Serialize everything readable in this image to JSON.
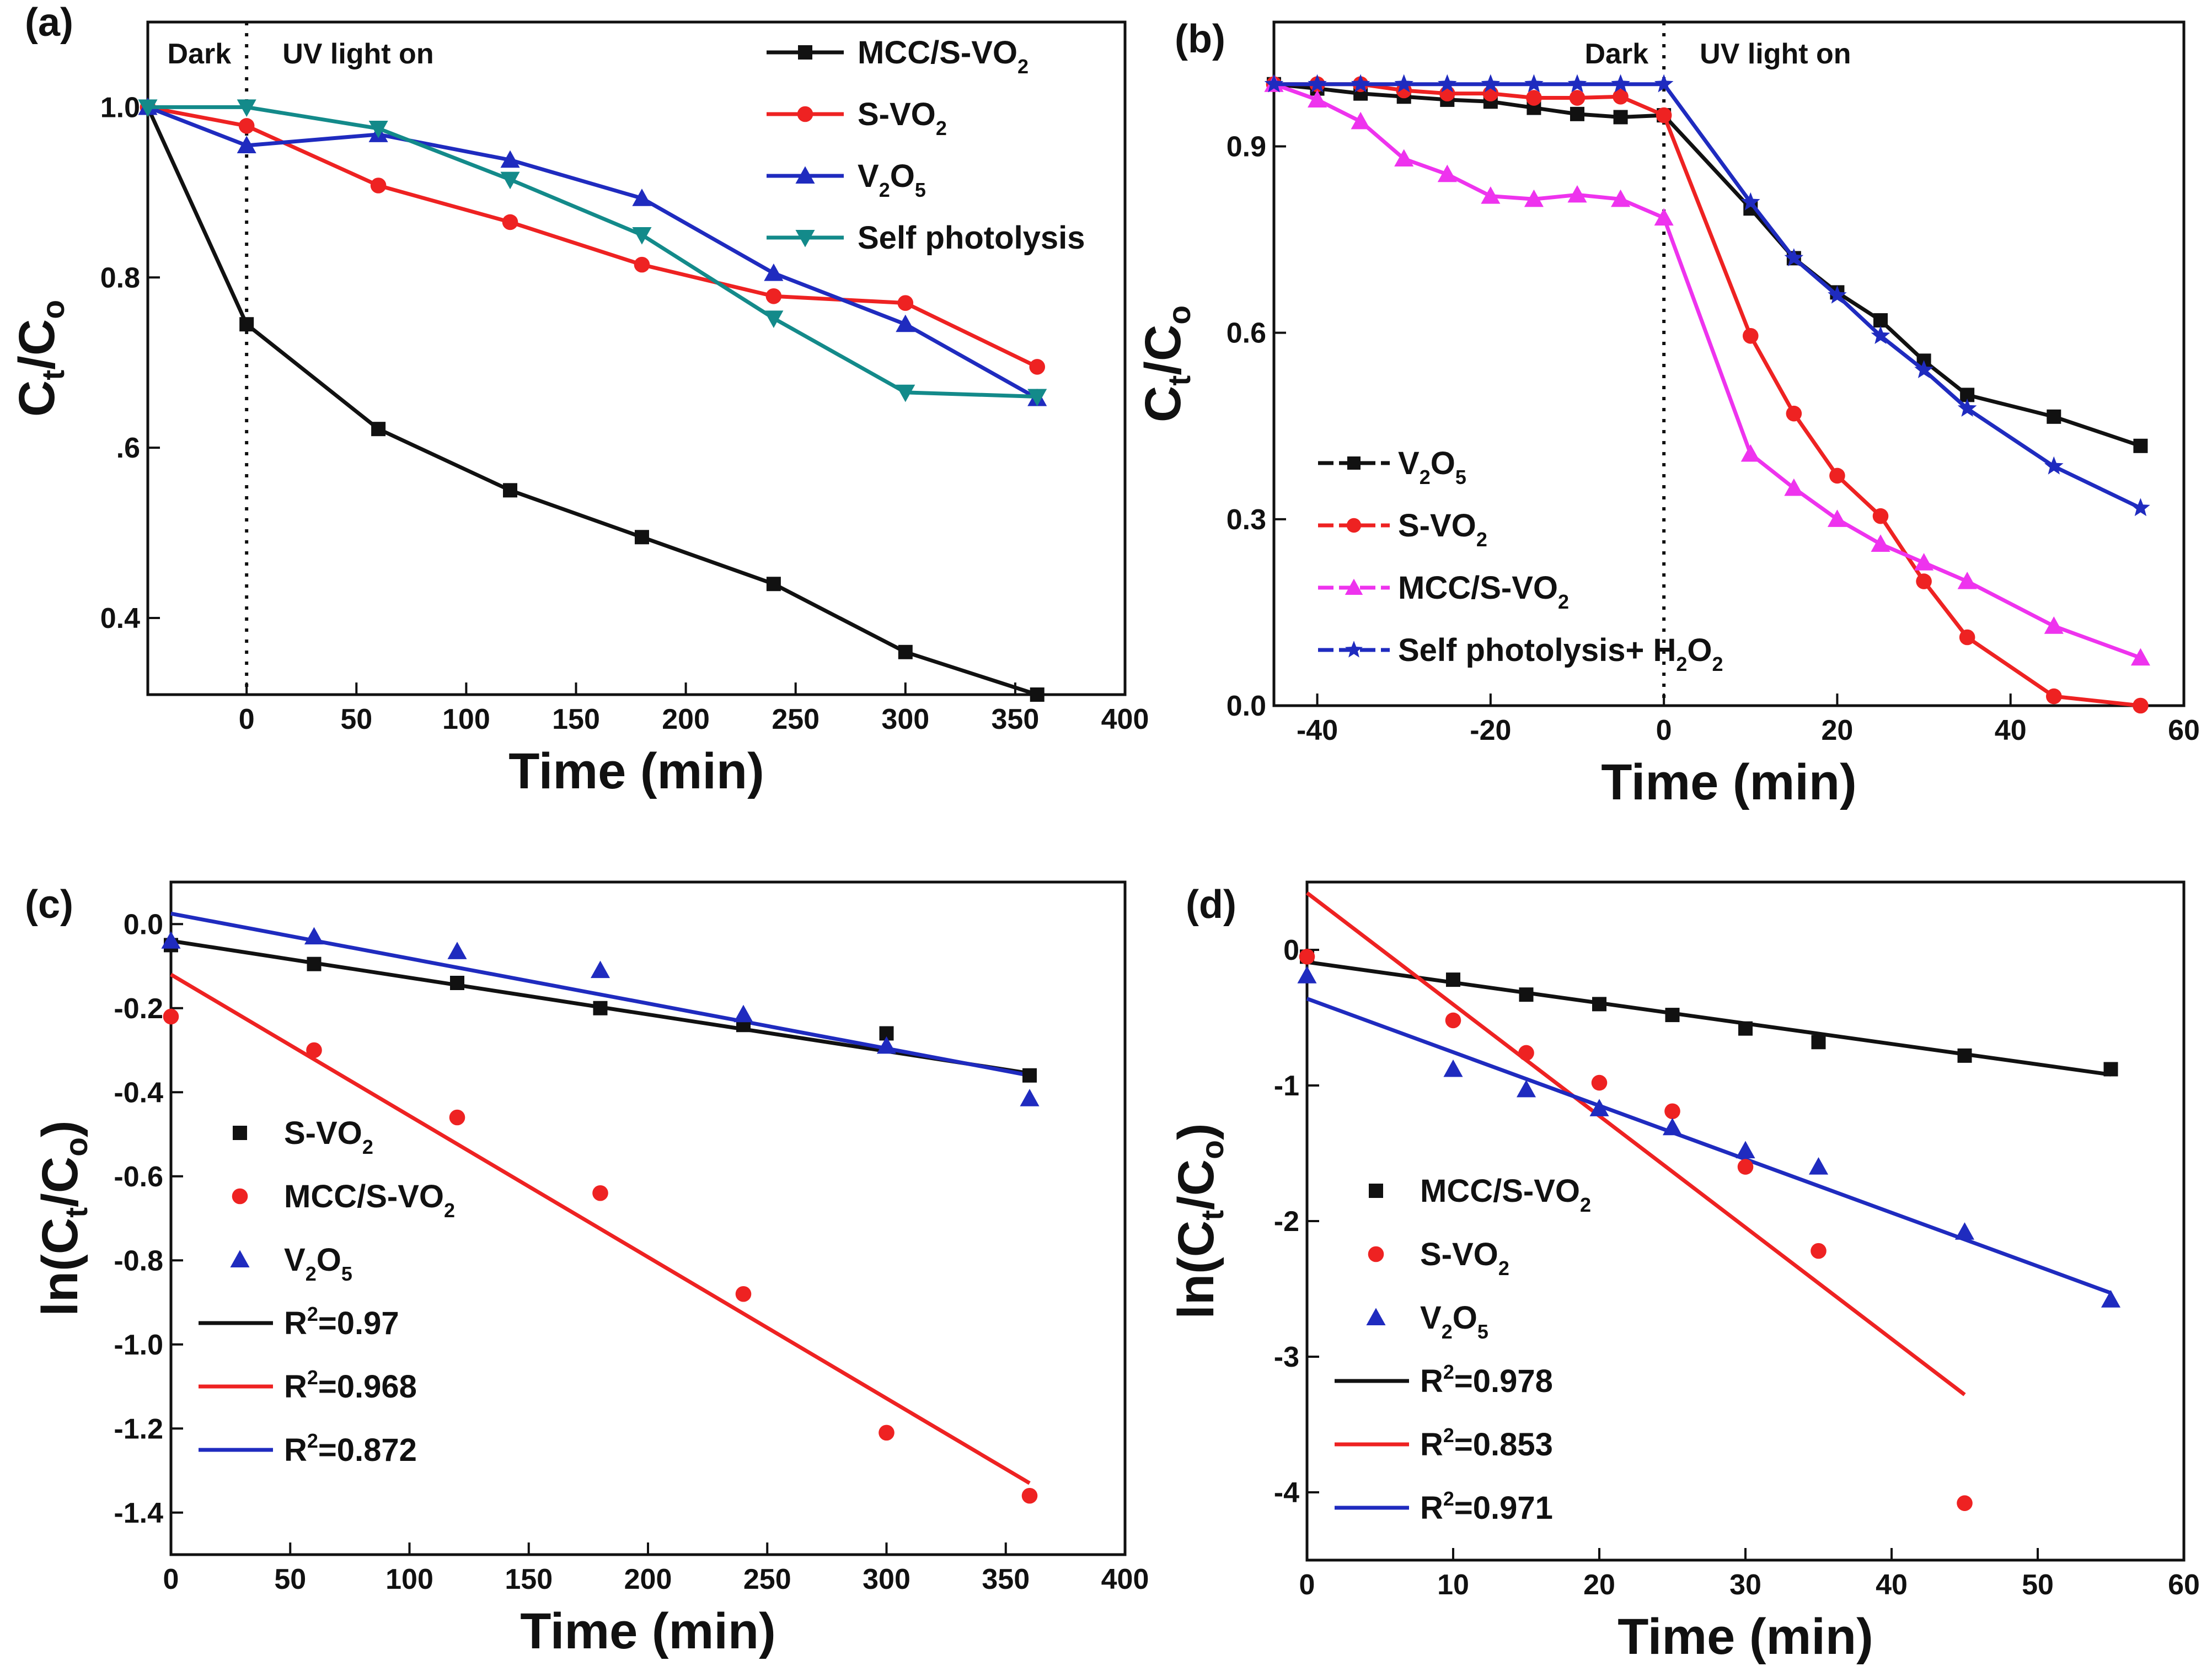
{
  "figure": {
    "colors": {
      "black": "#111111",
      "red": "#ee2222",
      "blue": "#1f2bbf",
      "teal": "#138a8a",
      "magenta": "#ee33ee"
    }
  },
  "chart_data": [
    {
      "panel": "(a)",
      "type": "line",
      "xlabel": "Time (min)",
      "ylabel_main": "C",
      "ylabel_sub1": "t",
      "ylabel_mid": "/C",
      "ylabel_sub2": "o",
      "xlim": [
        -45,
        400
      ],
      "ylim": [
        0.31,
        1.1
      ],
      "xticks": [
        0,
        50,
        100,
        150,
        200,
        250,
        300,
        350,
        400
      ],
      "xtick_labels": [
        "0",
        "50",
        "100",
        "150",
        "200",
        "250",
        "300",
        "350",
        "400"
      ],
      "yticks": [
        0.4,
        0.6,
        0.8,
        1.0
      ],
      "ytick_labels": [
        "0.4",
        ".6",
        "0.8",
        "1.0"
      ],
      "vline_x": 0,
      "region_left": "Dark",
      "region_right": "UV light on",
      "legend_position": "top-right",
      "series": [
        {
          "name_main": "MCC/S-VO",
          "name_sub": "2",
          "color": "#111111",
          "marker": "square",
          "x": [
            -45,
            0,
            60,
            120,
            180,
            240,
            300,
            360
          ],
          "y": [
            1.0,
            0.745,
            0.622,
            0.55,
            0.495,
            0.44,
            0.36,
            0.31
          ]
        },
        {
          "name_main": "S-VO",
          "name_sub": "2",
          "color": "#ee2222",
          "marker": "circle",
          "x": [
            -45,
            0,
            60,
            120,
            180,
            240,
            300,
            360
          ],
          "y": [
            1.0,
            0.978,
            0.908,
            0.865,
            0.815,
            0.778,
            0.77,
            0.695
          ]
        },
        {
          "name_main": "V",
          "name_sub": "2",
          "name_mid": "O",
          "name_sub2": "5",
          "color": "#1f2bbf",
          "marker": "triangle-up",
          "x": [
            -45,
            0,
            60,
            120,
            180,
            240,
            300,
            360
          ],
          "y": [
            1.0,
            0.955,
            0.968,
            0.938,
            0.893,
            0.805,
            0.745,
            0.658
          ]
        },
        {
          "name_main": "Self photolysis",
          "color": "#138a8a",
          "marker": "triangle-down",
          "x": [
            -45,
            0,
            60,
            120,
            180,
            240,
            300,
            360
          ],
          "y": [
            1.0,
            1.0,
            0.975,
            0.915,
            0.85,
            0.752,
            0.665,
            0.66
          ]
        }
      ]
    },
    {
      "panel": "(b)",
      "type": "line",
      "xlabel": "Time (min)",
      "ylabel_main": "C",
      "ylabel_sub1": "t",
      "ylabel_mid": "/C",
      "ylabel_sub2": "o",
      "xlim": [
        -45,
        60
      ],
      "ylim": [
        0.0,
        1.1
      ],
      "xticks": [
        -40,
        -20,
        0,
        20,
        40,
        60
      ],
      "xtick_labels": [
        "-40",
        "-20",
        "0",
        "20",
        "40",
        "60"
      ],
      "yticks": [
        0.0,
        0.3,
        0.6,
        0.9
      ],
      "ytick_labels": [
        "0.0",
        "0.3",
        "0.6",
        "0.9"
      ],
      "vline_x": 0,
      "region_left": "Dark",
      "region_right": "UV light on",
      "legend_position": "bottom-left",
      "series": [
        {
          "name_main": "V",
          "name_sub": "2",
          "name_mid": "O",
          "name_sub2": "5",
          "color": "#111111",
          "marker": "square",
          "x": [
            -45,
            -40,
            -35,
            -30,
            -25,
            -20,
            -15,
            -10,
            -5,
            0,
            10,
            15,
            20,
            25,
            30,
            35,
            45,
            55
          ],
          "y": [
            1.0,
            0.993,
            0.985,
            0.98,
            0.975,
            0.972,
            0.962,
            0.952,
            0.947,
            0.95,
            0.8,
            0.72,
            0.665,
            0.62,
            0.555,
            0.5,
            0.465,
            0.418
          ]
        },
        {
          "name_main": "S-VO",
          "name_sub": "2",
          "color": "#ee2222",
          "marker": "circle",
          "x": [
            -45,
            -40,
            -35,
            -30,
            -25,
            -20,
            -15,
            -10,
            -5,
            0,
            10,
            15,
            20,
            25,
            30,
            35,
            45,
            55
          ],
          "y": [
            1.0,
            1.0,
            1.0,
            0.99,
            0.985,
            0.985,
            0.978,
            0.978,
            0.98,
            0.95,
            0.595,
            0.47,
            0.37,
            0.305,
            0.2,
            0.11,
            0.015,
            0.0
          ]
        },
        {
          "name_main": "MCC/S-VO",
          "name_sub": "2",
          "color": "#ee33ee",
          "marker": "triangle-up",
          "x": [
            -45,
            -40,
            -35,
            -30,
            -25,
            -20,
            -15,
            -10,
            -5,
            0,
            10,
            15,
            20,
            25,
            30,
            35,
            45,
            55
          ],
          "y": [
            1.0,
            0.975,
            0.94,
            0.88,
            0.855,
            0.82,
            0.815,
            0.822,
            0.815,
            0.785,
            0.405,
            0.35,
            0.3,
            0.26,
            0.23,
            0.2,
            0.128,
            0.077
          ]
        },
        {
          "name_main": "Self photolysis+ H",
          "name_sub": "2",
          "name_mid": "O",
          "name_sub2": "2",
          "color": "#1f2bbf",
          "marker": "star",
          "x": [
            -45,
            -40,
            -35,
            -30,
            -25,
            -20,
            -15,
            -10,
            -5,
            0,
            10,
            15,
            20,
            25,
            30,
            35,
            45,
            55
          ],
          "y": [
            1.0,
            1.0,
            1.0,
            1.0,
            1.0,
            1.0,
            1.0,
            1.0,
            1.0,
            1.0,
            0.81,
            0.72,
            0.66,
            0.595,
            0.54,
            0.478,
            0.385,
            0.318
          ]
        }
      ]
    },
    {
      "panel": "(c)",
      "type": "scatter",
      "xlabel": "Time (min)",
      "ylabel_main": "ln(C",
      "ylabel_sub1": "t",
      "ylabel_mid": "/C",
      "ylabel_sub2": "o",
      "ylabel_end": ")",
      "xlim": [
        0,
        400
      ],
      "ylim": [
        -1.5,
        0.1
      ],
      "xticks": [
        0,
        50,
        100,
        150,
        200,
        250,
        300,
        350,
        400
      ],
      "xtick_labels": [
        "0",
        "50",
        "100",
        "150",
        "200",
        "250",
        "300",
        "350",
        "400"
      ],
      "yticks": [
        -1.4,
        -1.2,
        -1.0,
        -0.8,
        -0.6,
        -0.4,
        -0.2,
        0.0
      ],
      "ytick_labels": [
        "-1.4",
        "-1.2",
        "-1.0",
        "-0.8",
        "-0.6",
        "-0.4",
        "-0.2",
        "0.0"
      ],
      "legend_position": "middle-left",
      "series": [
        {
          "name_main": "S-VO",
          "name_sub": "2",
          "color": "#111111",
          "marker": "square",
          "x": [
            0,
            60,
            120,
            180,
            240,
            300,
            360
          ],
          "y": [
            -0.05,
            -0.095,
            -0.14,
            -0.2,
            -0.24,
            -0.26,
            -0.36
          ]
        },
        {
          "name_main": "MCC/S-VO",
          "name_sub": "2",
          "color": "#ee2222",
          "marker": "circle",
          "x": [
            0,
            60,
            120,
            180,
            240,
            300,
            360
          ],
          "y": [
            -0.22,
            -0.3,
            -0.46,
            -0.64,
            -0.88,
            -1.21,
            -1.36
          ]
        },
        {
          "name_main": "V",
          "name_sub": "2",
          "name_mid": "O",
          "name_sub2": "5",
          "color": "#1f2bbf",
          "marker": "triangle-up",
          "x": [
            0,
            60,
            120,
            180,
            240,
            300,
            360
          ],
          "y": [
            -0.04,
            -0.03,
            -0.065,
            -0.11,
            -0.215,
            -0.29,
            -0.415
          ]
        }
      ],
      "fits": [
        {
          "label_main": "R",
          "label_sup": "2",
          "label_end": "=0.97",
          "color": "#111111",
          "x": [
            0,
            360
          ],
          "y": [
            -0.04,
            -0.355
          ]
        },
        {
          "label_main": "R",
          "label_sup": "2",
          "label_end": "=0.968",
          "color": "#ee2222",
          "x": [
            0,
            360
          ],
          "y": [
            -0.12,
            -1.33
          ]
        },
        {
          "label_main": "R",
          "label_sup": "2",
          "label_end": "=0.872",
          "color": "#1f2bbf",
          "x": [
            0,
            360
          ],
          "y": [
            0.025,
            -0.36
          ]
        }
      ]
    },
    {
      "panel": "(d)",
      "type": "scatter",
      "xlabel": "Time (min)",
      "ylabel_main": "ln(C",
      "ylabel_sub1": "t",
      "ylabel_mid": "/C",
      "ylabel_sub2": "o",
      "ylabel_end": ")",
      "xlim": [
        0,
        60
      ],
      "ylim": [
        -4.5,
        0.5
      ],
      "xticks": [
        0,
        10,
        20,
        30,
        40,
        50,
        60
      ],
      "xtick_labels": [
        "0",
        "10",
        "20",
        "30",
        "40",
        "50",
        "60"
      ],
      "yticks": [
        -4,
        -3,
        -2,
        -1,
        0
      ],
      "ytick_labels": [
        "-4",
        "-3",
        "-2",
        "-1",
        "0"
      ],
      "legend_position": "middle-left",
      "series": [
        {
          "name_main": "MCC/S-VO",
          "name_sub": "2",
          "color": "#111111",
          "marker": "square",
          "x": [
            0,
            10,
            15,
            20,
            25,
            30,
            35,
            45,
            55
          ],
          "y": [
            -0.05,
            -0.22,
            -0.33,
            -0.4,
            -0.48,
            -0.58,
            -0.68,
            -0.78,
            -0.88
          ]
        },
        {
          "name_main": "S-VO",
          "name_sub": "2",
          "color": "#ee2222",
          "marker": "circle",
          "x": [
            0,
            10,
            15,
            20,
            25,
            30,
            35,
            45
          ],
          "y": [
            -0.05,
            -0.52,
            -0.76,
            -0.98,
            -1.19,
            -1.6,
            -2.22,
            -4.08
          ]
        },
        {
          "name_main": "V",
          "name_sub": "2",
          "name_mid": "O",
          "name_sub2": "5",
          "color": "#1f2bbf",
          "marker": "triangle-up",
          "x": [
            0,
            10,
            15,
            20,
            25,
            30,
            35,
            45,
            55
          ],
          "y": [
            -0.19,
            -0.88,
            -1.03,
            -1.17,
            -1.31,
            -1.48,
            -1.6,
            -2.08,
            -2.58
          ]
        }
      ],
      "fits": [
        {
          "label_main": "R",
          "label_sup": "2",
          "label_end": "=0.978",
          "color": "#111111",
          "x": [
            0,
            55
          ],
          "y": [
            -0.09,
            -0.92
          ]
        },
        {
          "label_main": "R",
          "label_sup": "2",
          "label_end": "=0.853",
          "color": "#ee2222",
          "x": [
            0,
            45
          ],
          "y": [
            0.42,
            -3.28
          ]
        },
        {
          "label_main": "R",
          "label_sup": "2",
          "label_end": "=0.971",
          "color": "#1f2bbf",
          "x": [
            0,
            55
          ],
          "y": [
            -0.36,
            -2.53
          ]
        }
      ]
    }
  ]
}
